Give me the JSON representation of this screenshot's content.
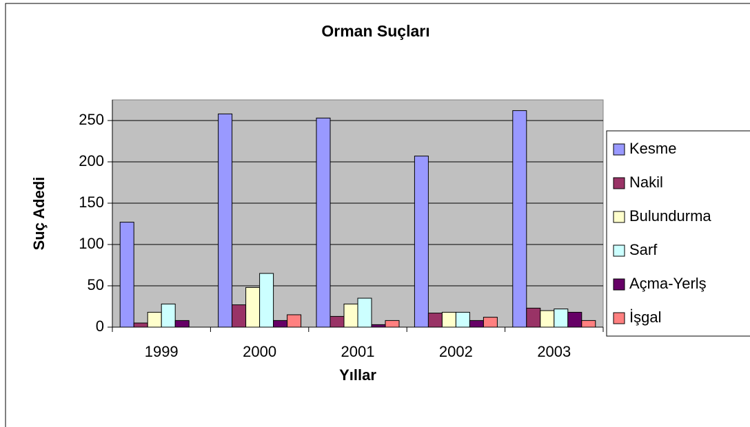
{
  "chart_data": {
    "type": "bar",
    "title": "Orman Suçları",
    "x_label": "Yıllar",
    "y_label": "Suç Adedi",
    "categories": [
      "1999",
      "2000",
      "2001",
      "2002",
      "2003"
    ],
    "series": [
      {
        "name": "Kesme",
        "color": "#9999ff",
        "values": [
          127,
          258,
          253,
          207,
          262
        ]
      },
      {
        "name": "Nakil",
        "color": "#993366",
        "values": [
          5,
          27,
          13,
          17,
          23
        ]
      },
      {
        "name": "Bulundurma",
        "color": "#ffffcc",
        "values": [
          18,
          48,
          28,
          18,
          20
        ]
      },
      {
        "name": "Sarf",
        "color": "#ccffff",
        "values": [
          28,
          65,
          35,
          18,
          22
        ]
      },
      {
        "name": "Açma-Yerlş",
        "color": "#660066",
        "values": [
          8,
          8,
          3,
          8,
          18
        ]
      },
      {
        "name": "İşgal",
        "color": "#ff8080",
        "values": [
          0,
          15,
          8,
          12,
          8
        ]
      }
    ],
    "ylim": [
      0,
      275
    ],
    "yticks": [
      0,
      50,
      100,
      150,
      200,
      250
    ],
    "grid": true,
    "legend": "right"
  }
}
